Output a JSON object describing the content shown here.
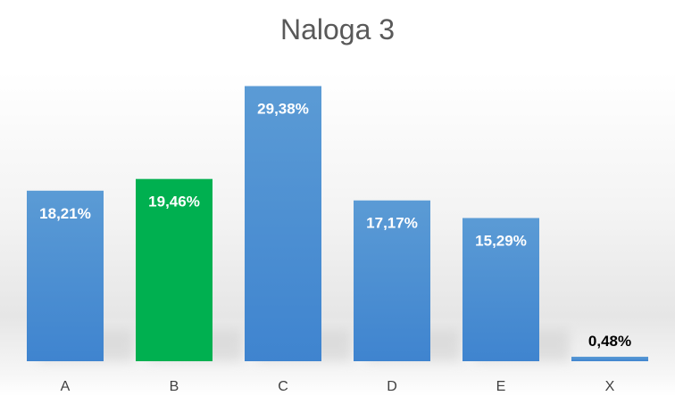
{
  "chart_data": {
    "type": "bar",
    "title": "Naloga 3",
    "xlabel": "",
    "ylabel": "",
    "categories": [
      "A",
      "B",
      "C",
      "D",
      "E",
      "X"
    ],
    "values": [
      18.21,
      19.46,
      29.38,
      17.17,
      15.29,
      0.48
    ],
    "value_labels": [
      "18,21%",
      "19,46%",
      "29,38%",
      "17,17%",
      "15,29%",
      "0,48%"
    ],
    "ylim": [
      0,
      30
    ],
    "grid": false,
    "legend": "none",
    "highlight_index": 1,
    "colors": {
      "bar": "#4a8fd8",
      "bar_top": "#5b9bd5",
      "bar_bottom": "#3f84cf",
      "highlight": "#00b050",
      "label_inside": "#ffffff",
      "label_outside": "#000000"
    }
  }
}
